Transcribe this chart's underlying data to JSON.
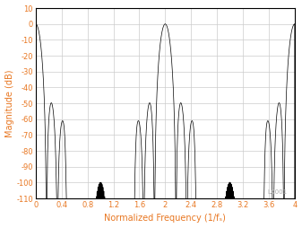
{
  "title": "",
  "xlabel": "Normalized Frequency (1/fₛ)",
  "ylabel": "Magnitude (dB)",
  "xlim": [
    0,
    4
  ],
  "ylim": [
    -110,
    10
  ],
  "xticks": [
    0,
    0.4,
    0.8,
    1.2,
    1.6,
    2.0,
    2.4,
    2.8,
    3.2,
    3.6,
    4.0
  ],
  "yticks": [
    10,
    0,
    -10,
    -20,
    -30,
    -40,
    -50,
    -60,
    -70,
    -80,
    -90,
    -100,
    -110
  ],
  "xtick_labels": [
    "0",
    "0.4",
    "0.8",
    "1.2",
    "1.6",
    "2",
    "2.4",
    "2.8",
    "3.2",
    "3.6",
    "4"
  ],
  "ytick_labels": [
    "10",
    "0",
    "-10",
    "-20",
    "-30",
    "-40",
    "-50",
    "-60",
    "-70",
    "-80",
    "-90",
    "-100",
    "-110"
  ],
  "line_color": "#000000",
  "grid_color": "#cccccc",
  "axis_label_color": "#e87722",
  "tick_label_color": "#e87722",
  "background_color": "#ffffff",
  "watermark": "LX001"
}
